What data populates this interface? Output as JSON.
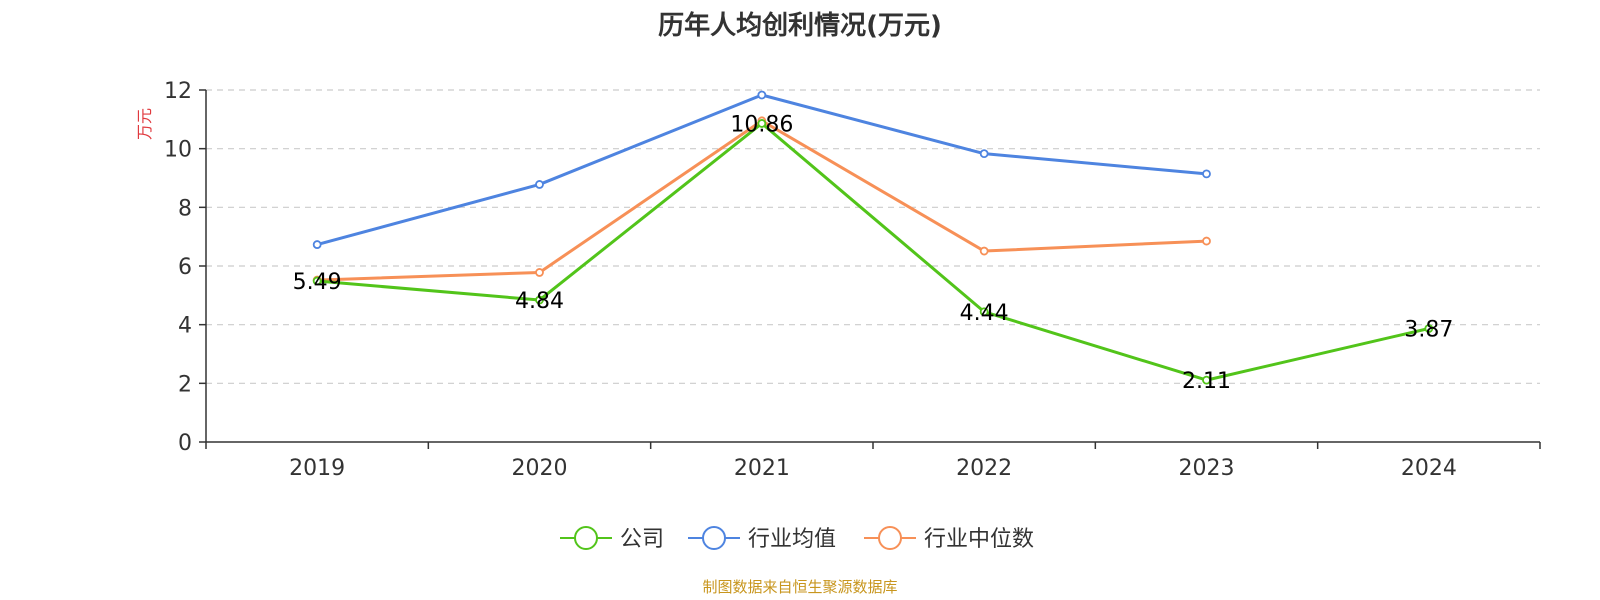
{
  "chart_data": {
    "type": "line",
    "title": "历年人均创利情况(万元)",
    "ylabel": "万元",
    "xlabel": "",
    "categories": [
      "2019",
      "2020",
      "2021",
      "2022",
      "2023",
      "2024"
    ],
    "ylim": [
      0,
      12
    ],
    "yticks": [
      0,
      2,
      4,
      6,
      8,
      10,
      12
    ],
    "grid": true,
    "legend_position": "bottom",
    "series": [
      {
        "name": "公司",
        "color": "#52c41a",
        "values": [
          5.49,
          4.84,
          10.86,
          4.44,
          2.11,
          3.87
        ],
        "labels": [
          "5.49",
          "4.84",
          "10.86",
          "4.44",
          "2.11",
          "3.87"
        ]
      },
      {
        "name": "行业均值",
        "color": "#4e84e0",
        "values": [
          6.73,
          8.78,
          11.83,
          9.83,
          9.14,
          null
        ]
      },
      {
        "name": "行业中位数",
        "color": "#f79057",
        "values": [
          5.52,
          5.78,
          10.95,
          6.51,
          6.85,
          null
        ]
      }
    ],
    "source": "制图数据来自恒生聚源数据库"
  },
  "colors": {
    "axis": "#333333",
    "grid": "#cccccc",
    "ylabel": "#e0393e",
    "source": "#c8961e"
  }
}
